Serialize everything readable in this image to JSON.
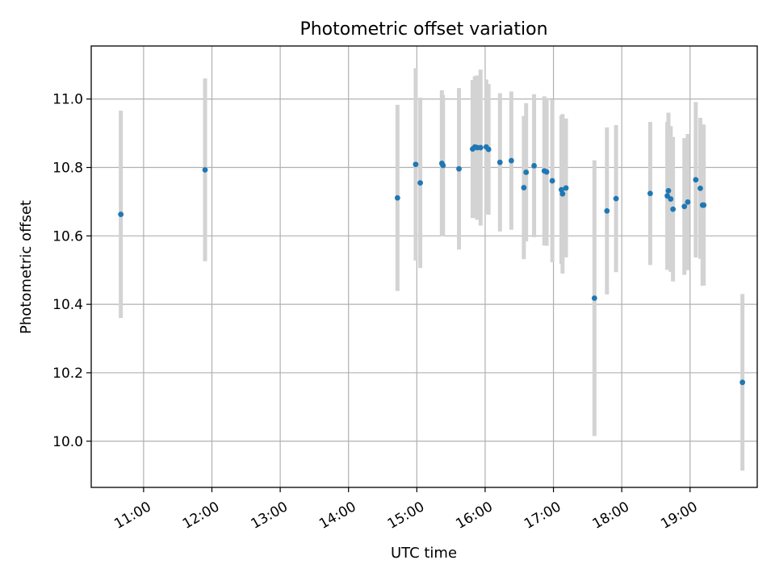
{
  "chart_data": {
    "type": "scatter",
    "title": "Photometric offset variation",
    "xlabel": "UTC time",
    "ylabel": "Photometric offset",
    "xlim": [
      "10:14",
      "19:59"
    ],
    "ylim": [
      9.865,
      11.155
    ],
    "x_ticks": [
      "11:00",
      "12:00",
      "13:00",
      "14:00",
      "15:00",
      "16:00",
      "17:00",
      "18:00",
      "19:00"
    ],
    "y_ticks": [
      10.0,
      10.2,
      10.4,
      10.6,
      10.8,
      11.0
    ],
    "grid": true,
    "colors": {
      "point": "#1f77b4",
      "errorbar": "#d3d3d3"
    },
    "series": [
      {
        "x": [
          "10:40",
          "11:54",
          "14:43",
          "14:59",
          "15:03",
          "15:22",
          "15:23",
          "15:37",
          "15:49",
          "15:51",
          "15:53",
          "15:56",
          "16:01",
          "16:03",
          "16:13",
          "16:23",
          "16:34",
          "16:36",
          "16:43",
          "16:52",
          "16:54",
          "16:59",
          "17:07",
          "17:08",
          "17:11",
          "17:36",
          "17:47",
          "17:55",
          "18:25",
          "18:40",
          "18:41",
          "18:43",
          "18:45",
          "18:55",
          "18:58",
          "19:05",
          "19:09",
          "19:11",
          "19:12",
          "19:46"
        ],
        "y": [
          10.663,
          10.793,
          10.711,
          10.809,
          10.755,
          10.812,
          10.806,
          10.796,
          10.854,
          10.86,
          10.858,
          10.858,
          10.86,
          10.853,
          10.815,
          10.82,
          10.741,
          10.786,
          10.805,
          10.79,
          10.787,
          10.761,
          10.735,
          10.723,
          10.74,
          10.418,
          10.673,
          10.709,
          10.724,
          10.717,
          10.732,
          10.708,
          10.678,
          10.686,
          10.699,
          10.764,
          10.739,
          10.69,
          10.69,
          10.172
        ],
        "yerr": [
          0.303,
          0.267,
          0.272,
          0.281,
          0.249,
          0.214,
          0.206,
          0.236,
          0.202,
          0.207,
          0.211,
          0.228,
          0.197,
          0.191,
          0.202,
          0.202,
          0.209,
          0.202,
          0.209,
          0.218,
          0.216,
          0.238,
          0.217,
          0.233,
          0.203,
          0.403,
          0.244,
          0.215,
          0.209,
          0.216,
          0.228,
          0.213,
          0.211,
          0.2,
          0.199,
          0.227,
          0.206,
          0.236,
          0.235,
          0.258
        ]
      }
    ]
  }
}
